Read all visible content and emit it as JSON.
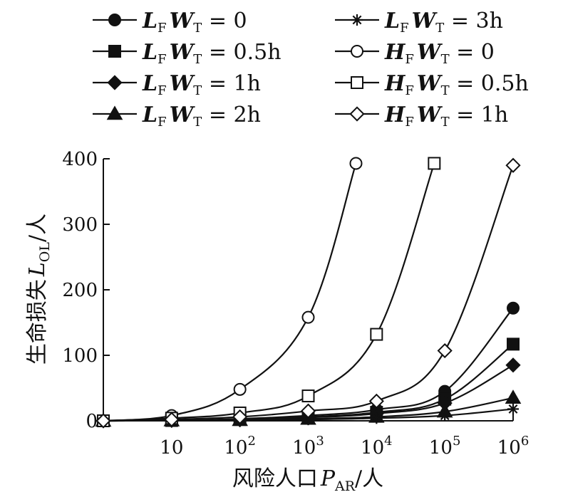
{
  "chart_data": {
    "type": "line",
    "xlabel": "风险人口 P_AR/人",
    "ylabel": "生命损失 L_OL/人",
    "x_scale": "log",
    "x_tick_labels": [
      "10",
      "10^2",
      "10^3",
      "10^4",
      "10^5",
      "10^6"
    ],
    "x_ticks": [
      10,
      100,
      1000,
      10000,
      100000,
      1000000
    ],
    "xlim": [
      1,
      1000000
    ],
    "ylim": [
      0,
      400
    ],
    "y_ticks": [
      0,
      100,
      200,
      300,
      400
    ],
    "y_tick_labels": [
      "0",
      "100",
      "200",
      "300",
      "400"
    ],
    "grid": false,
    "legend_position": "top",
    "series": [
      {
        "name": "L_F W_T = 0",
        "marker": "filled-circle",
        "x": [
          1,
          10,
          100,
          1000,
          10000,
          100000,
          1000000
        ],
        "y": [
          0,
          0.5,
          3,
          8,
          17,
          45,
          172
        ]
      },
      {
        "name": "L_F W_T = 0.5h",
        "marker": "filled-square",
        "x": [
          1,
          10,
          100,
          1000,
          10000,
          100000,
          1000000
        ],
        "y": [
          0,
          0.5,
          2,
          6,
          13,
          33,
          117
        ]
      },
      {
        "name": "L_F W_T = 1h",
        "marker": "filled-diamond",
        "x": [
          1,
          10,
          100,
          1000,
          10000,
          100000,
          1000000
        ],
        "y": [
          0,
          0.5,
          1.5,
          5,
          11,
          27,
          85
        ]
      },
      {
        "name": "L_F W_T = 2h",
        "marker": "filled-triangle",
        "x": [
          1,
          10,
          100,
          1000,
          10000,
          100000,
          1000000
        ],
        "y": [
          0,
          0.5,
          1,
          3,
          6,
          14,
          35
        ]
      },
      {
        "name": "L_F W_T = 3h",
        "marker": "star",
        "x": [
          1,
          10,
          100,
          1000,
          10000,
          100000,
          1000000
        ],
        "y": [
          0,
          0.5,
          1,
          2,
          4,
          8,
          18
        ]
      },
      {
        "name": "H_F W_T = 0",
        "marker": "open-circle",
        "x": [
          1,
          10,
          100,
          1000,
          5000
        ],
        "y": [
          0,
          8,
          48,
          158,
          393
        ]
      },
      {
        "name": "H_F W_T = 0.5h",
        "marker": "open-square",
        "x": [
          1,
          10,
          100,
          1000,
          10000,
          70000
        ],
        "y": [
          0,
          4,
          12,
          38,
          132,
          393
        ]
      },
      {
        "name": "H_F W_T = 1h",
        "marker": "open-diamond",
        "x": [
          1,
          10,
          100,
          1000,
          10000,
          100000,
          1000000
        ],
        "y": [
          0,
          2,
          6,
          15,
          30,
          107,
          390
        ]
      }
    ]
  }
}
